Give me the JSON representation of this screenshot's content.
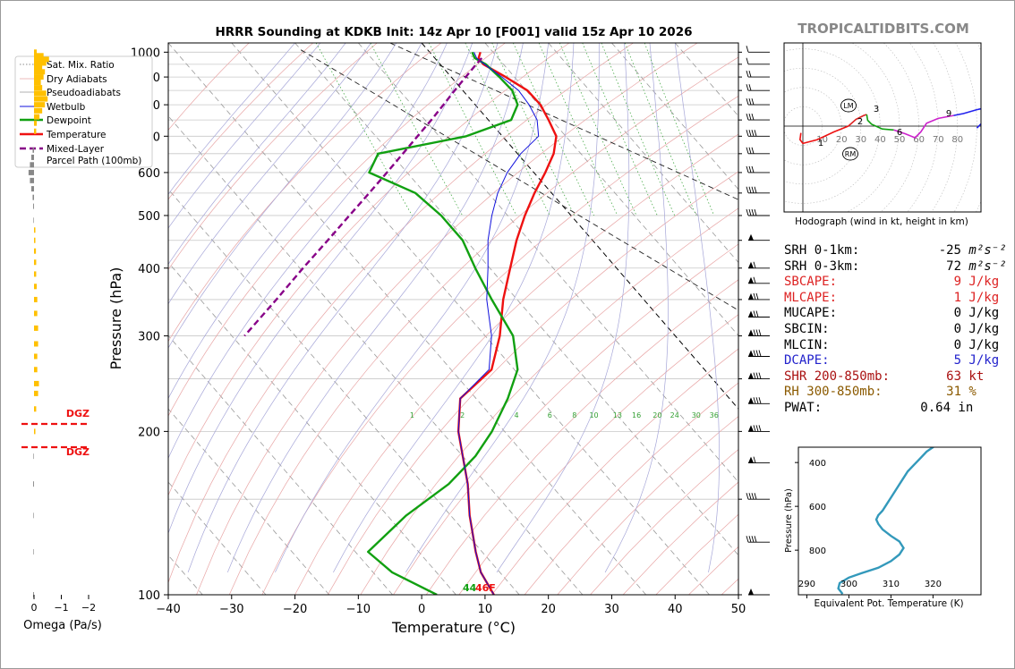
{
  "chart_data": [
    {
      "type": "line",
      "subtype": "skew-t-log-p",
      "title": "HRRR Sounding at KDKB Init: 14z Apr 10 [F001] valid 15z Apr 10 2026",
      "xlabel": "Temperature (°C)",
      "ylabel": "Pressure (hPa)",
      "xlim": [
        -40,
        50
      ],
      "ylim": [
        1040,
        100
      ],
      "y_scale": "log",
      "x_ticks": [
        "−40",
        "−30",
        "−20",
        "−10",
        "0",
        "10",
        "20",
        "30",
        "40",
        "50"
      ],
      "y_ticks": [
        "100",
        "200",
        "300",
        "400",
        "500",
        "600",
        "700",
        "800",
        "900",
        "1000"
      ],
      "legend_position": "top-left",
      "legend": [
        "Sat. Mix. Ratio",
        "Dry Adiabats",
        "Pseudoadiabats",
        "Wetbulb",
        "Dewpoint",
        "Temperature",
        "Mixed-Layer\nParcel Path (100mb)"
      ],
      "mixing_ratio_labels": [
        "1",
        "2",
        "4",
        "6",
        "8",
        "10",
        "13",
        "16",
        "20",
        "24",
        "30",
        "36"
      ],
      "surface_labels": {
        "dewpoint": "44",
        "temperature": "46F"
      },
      "series": [
        {
          "name": "Temperature",
          "color": "#ee1111",
          "points": [
            [
              8.0,
              1000
            ],
            [
              6.9,
              975
            ],
            [
              6.8,
              950
            ],
            [
              8.6,
              900
            ],
            [
              10.2,
              850
            ],
            [
              10.3,
              800
            ],
            [
              9.5,
              750
            ],
            [
              8.5,
              700
            ],
            [
              5.7,
              650
            ],
            [
              1.8,
              600
            ],
            [
              -2.7,
              550
            ],
            [
              -7.3,
              500
            ],
            [
              -12.0,
              450
            ],
            [
              -16.8,
              400
            ],
            [
              -22.2,
              350
            ],
            [
              -27.7,
              300
            ],
            [
              -33.6,
              260
            ],
            [
              -42.5,
              230
            ],
            [
              -47.3,
              200
            ],
            [
              -50.0,
              180
            ],
            [
              -53.0,
              160
            ],
            [
              -57.0,
              140
            ],
            [
              -61.0,
              120
            ],
            [
              -63.0,
              110
            ],
            [
              -64.0,
              100
            ]
          ]
        },
        {
          "name": "Dewpoint",
          "color": "#11a011",
          "points": [
            [
              6.7,
              1000
            ],
            [
              6.3,
              975
            ],
            [
              7.2,
              950
            ],
            [
              7.6,
              900
            ],
            [
              7.8,
              850
            ],
            [
              6.7,
              800
            ],
            [
              3.6,
              750
            ],
            [
              -5.7,
              700
            ],
            [
              -22.0,
              650
            ],
            [
              -26.0,
              600
            ],
            [
              -21.5,
              550
            ],
            [
              -20.5,
              500
            ],
            [
              -20.5,
              450
            ],
            [
              -22.3,
              400
            ],
            [
              -24.0,
              350
            ],
            [
              -25.6,
              300
            ],
            [
              -29.5,
              260
            ],
            [
              -35.0,
              230
            ],
            [
              -42.0,
              200
            ],
            [
              -48.0,
              180
            ],
            [
              -56.0,
              160
            ],
            [
              -67.0,
              140
            ],
            [
              -78.0,
              120
            ],
            [
              -77.0,
              110
            ],
            [
              -73.0,
              100
            ]
          ]
        },
        {
          "name": "Wetbulb",
          "color": "#1111dd",
          "points": [
            [
              7.0,
              1000
            ],
            [
              6.6,
              975
            ],
            [
              7.0,
              950
            ],
            [
              8.0,
              900
            ],
            [
              8.8,
              850
            ],
            [
              8.5,
              800
            ],
            [
              7.7,
              750
            ],
            [
              5.7,
              700
            ],
            [
              0.5,
              650
            ],
            [
              -4.2,
              600
            ],
            [
              -8.5,
              550
            ],
            [
              -12.5,
              500
            ],
            [
              -16.5,
              450
            ],
            [
              -20.3,
              400
            ],
            [
              -24.8,
              350
            ],
            [
              -29.0,
              300
            ],
            [
              -34.0,
              260
            ],
            [
              -42.5,
              230
            ],
            [
              -47.3,
              200
            ],
            [
              -50.0,
              180
            ],
            [
              -53.0,
              160
            ],
            [
              -57.0,
              140
            ],
            [
              -61.0,
              120
            ],
            [
              -63.0,
              110
            ],
            [
              -64.0,
              100
            ]
          ]
        },
        {
          "name": "Mixed-Layer\nParcel Path (100mb)",
          "color": "#880088",
          "dashed": true,
          "points": [
            [
              7.4,
              975
            ],
            [
              5.7,
              950
            ],
            [
              2.3,
              900
            ],
            [
              -1.3,
              850
            ],
            [
              -5.0,
              800
            ],
            [
              -9.0,
              750
            ],
            [
              -13.4,
              700
            ],
            [
              -18.1,
              650
            ],
            [
              -23.2,
              600
            ],
            [
              -28.8,
              550
            ],
            [
              -35.0,
              500
            ],
            [
              -41.8,
              450
            ],
            [
              -49.5,
              400
            ],
            [
              -58.0,
              350
            ],
            [
              -68.0,
              300
            ]
          ]
        }
      ]
    },
    {
      "type": "bar",
      "subtype": "omega-profile",
      "xlabel": "Omega (Pa/s)",
      "x_ticks": [
        "0",
        "−1",
        "−2"
      ],
      "dgz_labels": [
        "DGZ",
        "DGZ"
      ],
      "bars": [
        [
          1000,
          0.1
        ],
        [
          985,
          0.35
        ],
        [
          970,
          0.55
        ],
        [
          955,
          0.45
        ],
        [
          940,
          0.3
        ],
        [
          920,
          0.4
        ],
        [
          900,
          0.35
        ],
        [
          880,
          0.25
        ],
        [
          860,
          0.3
        ],
        [
          840,
          0.45
        ],
        [
          820,
          0.5
        ],
        [
          800,
          0.4
        ],
        [
          780,
          0.3
        ],
        [
          760,
          0.2
        ],
        [
          740,
          0.1
        ],
        [
          715,
          0.08
        ],
        [
          660,
          -0.05
        ],
        [
          640,
          -0.1
        ],
        [
          620,
          -0.15
        ],
        [
          600,
          -0.2
        ],
        [
          580,
          -0.15
        ],
        [
          560,
          -0.1
        ],
        [
          540,
          -0.05
        ],
        [
          520,
          -0.03
        ],
        [
          490,
          -0.02
        ],
        [
          470,
          0.05
        ],
        [
          450,
          0.05
        ],
        [
          430,
          0.07
        ],
        [
          410,
          0.08
        ],
        [
          390,
          0.08
        ],
        [
          370,
          0.1
        ],
        [
          350,
          0.12
        ],
        [
          330,
          0.12
        ],
        [
          310,
          0.15
        ],
        [
          290,
          0.15
        ],
        [
          275,
          0.12
        ],
        [
          260,
          0.12
        ],
        [
          245,
          0.18
        ],
        [
          235,
          0.15
        ],
        [
          220,
          0.08
        ],
        [
          200,
          0.05
        ],
        [
          180,
          -0.02
        ],
        [
          160,
          -0.03
        ],
        [
          140,
          -0.02
        ],
        [
          120,
          -0.02
        ],
        [
          100,
          -0.03
        ]
      ]
    },
    {
      "type": "line",
      "subtype": "hodograph",
      "caption": "Hodograph (wind in kt, height in km)",
      "ring_labels": [
        "10",
        "20",
        "30",
        "40",
        "50",
        "60",
        "70",
        "80"
      ],
      "height_labels": [
        "1",
        "2",
        "3",
        "6",
        "9"
      ],
      "markers": [
        "LM",
        "RM"
      ],
      "segments": [
        {
          "color": "#ee1111",
          "points": [
            [
              -2,
              -7
            ],
            [
              -3,
              -14
            ],
            [
              0,
              -18
            ],
            [
              15,
              -14
            ],
            [
              32,
              -6
            ],
            [
              47,
              0
            ]
          ]
        },
        {
          "color": "#dd2222",
          "points": [
            [
              47,
              0
            ],
            [
              55,
              7
            ],
            [
              63,
              11
            ],
            [
              66,
              12
            ]
          ]
        },
        {
          "color": "#11a011",
          "points": [
            [
              66,
              12
            ],
            [
              67,
              6
            ],
            [
              71,
              2
            ],
            [
              82,
              -3
            ],
            [
              94,
              -4
            ]
          ]
        },
        {
          "color": "#cc22cc",
          "points": [
            [
              94,
              -4
            ],
            [
              106,
              -8
            ],
            [
              116,
              -12
            ],
            [
              122,
              -6
            ],
            [
              128,
              3
            ],
            [
              140,
              8
            ],
            [
              156,
              11
            ]
          ]
        },
        {
          "color": "#2222ee",
          "points": [
            [
              156,
              11
            ],
            [
              166,
              13
            ],
            [
              180,
              17
            ],
            [
              194,
              20
            ],
            [
              198,
              15
            ],
            [
              188,
              6
            ],
            [
              180,
              -2
            ]
          ]
        }
      ]
    },
    {
      "type": "line",
      "subtype": "theta-e-profile",
      "xlabel": "Equivalent Pot. Temperature (K)",
      "ylabel": "Pressure (hPa)",
      "x_ticks": [
        "290",
        "300",
        "310",
        "320"
      ],
      "y_ticks": [
        "400",
        "600",
        "800"
      ],
      "color": "#3399bb",
      "points": [
        [
          298.5,
          1000
        ],
        [
          297.5,
          975
        ],
        [
          297.8,
          950
        ],
        [
          300,
          925
        ],
        [
          303,
          905
        ],
        [
          307,
          880
        ],
        [
          310,
          850
        ],
        [
          312,
          820
        ],
        [
          313,
          790
        ],
        [
          312,
          760
        ],
        [
          310,
          735
        ],
        [
          308,
          705
        ],
        [
          307,
          680
        ],
        [
          306.5,
          660
        ],
        [
          307,
          640
        ],
        [
          308,
          620
        ],
        [
          309,
          590
        ],
        [
          310,
          560
        ],
        [
          311,
          530
        ],
        [
          312,
          500
        ],
        [
          313,
          470
        ],
        [
          314,
          440
        ],
        [
          315.5,
          410
        ],
        [
          317,
          380
        ],
        [
          318.5,
          350
        ],
        [
          320,
          330
        ],
        [
          322,
          300
        ]
      ]
    }
  ],
  "branding": {
    "text": "TROPICALTIDBITS.COM",
    "color": "#888888"
  },
  "stats": [
    {
      "label": "SRH 0-1km:",
      "value": "-25",
      "unit": "m²s⁻²",
      "color": "#000000"
    },
    {
      "label": "SRH 0-3km:",
      "value": "72",
      "unit": "m²s⁻²",
      "color": "#000000"
    },
    {
      "label": "SBCAPE:",
      "value": "9",
      "unit": "J/kg",
      "color": "#dd2222"
    },
    {
      "label": "MLCAPE:",
      "value": "1",
      "unit": "J/kg",
      "color": "#dd2222"
    },
    {
      "label": "MUCAPE:",
      "value": "0",
      "unit": "J/kg",
      "color": "#000000"
    },
    {
      "label": "SBCIN:",
      "value": "0",
      "unit": "J/kg",
      "color": "#000000"
    },
    {
      "label": "MLCIN:",
      "value": "0",
      "unit": "J/kg",
      "color": "#000000"
    },
    {
      "label": "DCAPE:",
      "value": "5",
      "unit": "J/kg",
      "color": "#2222cc"
    },
    {
      "label": "SHR 200-850mb:",
      "value": "63",
      "unit": "kt",
      "color": "#aa1111"
    },
    {
      "label": "RH 300-850mb:",
      "value": "31",
      "unit": "%",
      "color": "#8b5a00"
    },
    {
      "label": "PWAT:",
      "value": "0.64",
      "unit": "in",
      "color": "#000000"
    }
  ]
}
